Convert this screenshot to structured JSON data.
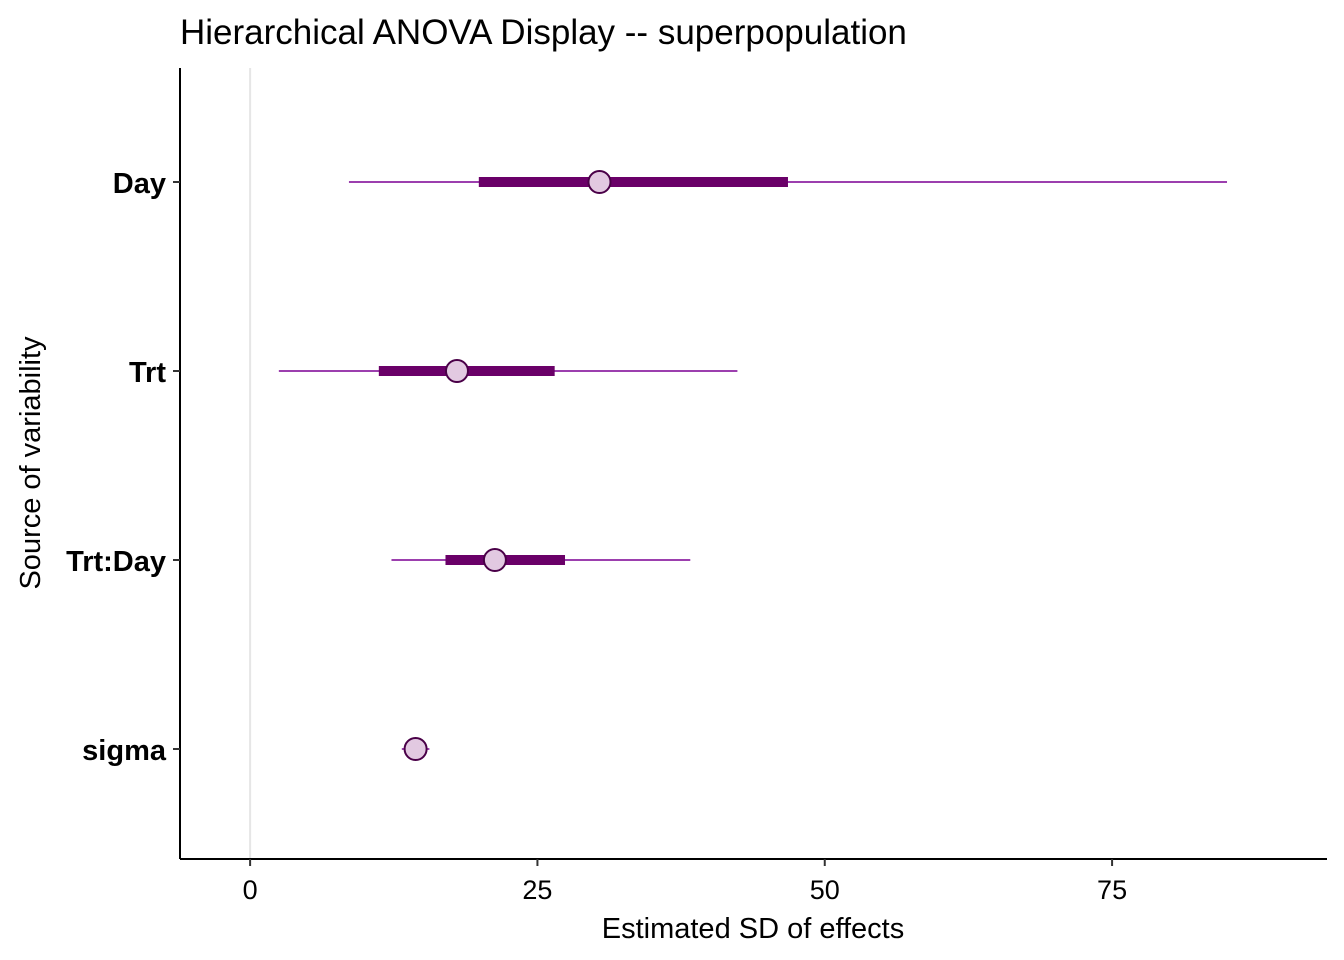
{
  "chart_data": {
    "type": "interval",
    "title": "Hierarchical ANOVA Display -- superpopulation",
    "xlabel": "Estimated SD of effects",
    "ylabel": "Source of variability",
    "xlim": [
      -6.1,
      93.7
    ],
    "xticks": [
      0,
      25,
      50,
      75
    ],
    "xtick_labels": [
      "0",
      "25",
      "50",
      "75"
    ],
    "reference_line_x": 0,
    "grid": false,
    "colors": {
      "outer": "#9c3fae",
      "inner": "#6a0068",
      "point_fill": "#e2c9e1",
      "point_stroke": "#4a0048",
      "refline": "#e6e6e6"
    },
    "categories": [
      "Day",
      "Trt",
      "Trt:Day",
      "sigma"
    ],
    "series": [
      {
        "name": "Day",
        "median": 30.4,
        "inner": [
          19.9,
          46.8
        ],
        "outer": [
          8.6,
          85.0
        ]
      },
      {
        "name": "Trt",
        "median": 18.0,
        "inner": [
          11.2,
          26.5
        ],
        "outer": [
          2.5,
          42.4
        ]
      },
      {
        "name": "Trt:Day",
        "median": 21.3,
        "inner": [
          17.0,
          27.4
        ],
        "outer": [
          12.3,
          38.3
        ]
      },
      {
        "name": "sigma",
        "median": 14.4,
        "inner": [
          13.9,
          14.9
        ],
        "outer": [
          13.2,
          15.6
        ]
      }
    ]
  }
}
